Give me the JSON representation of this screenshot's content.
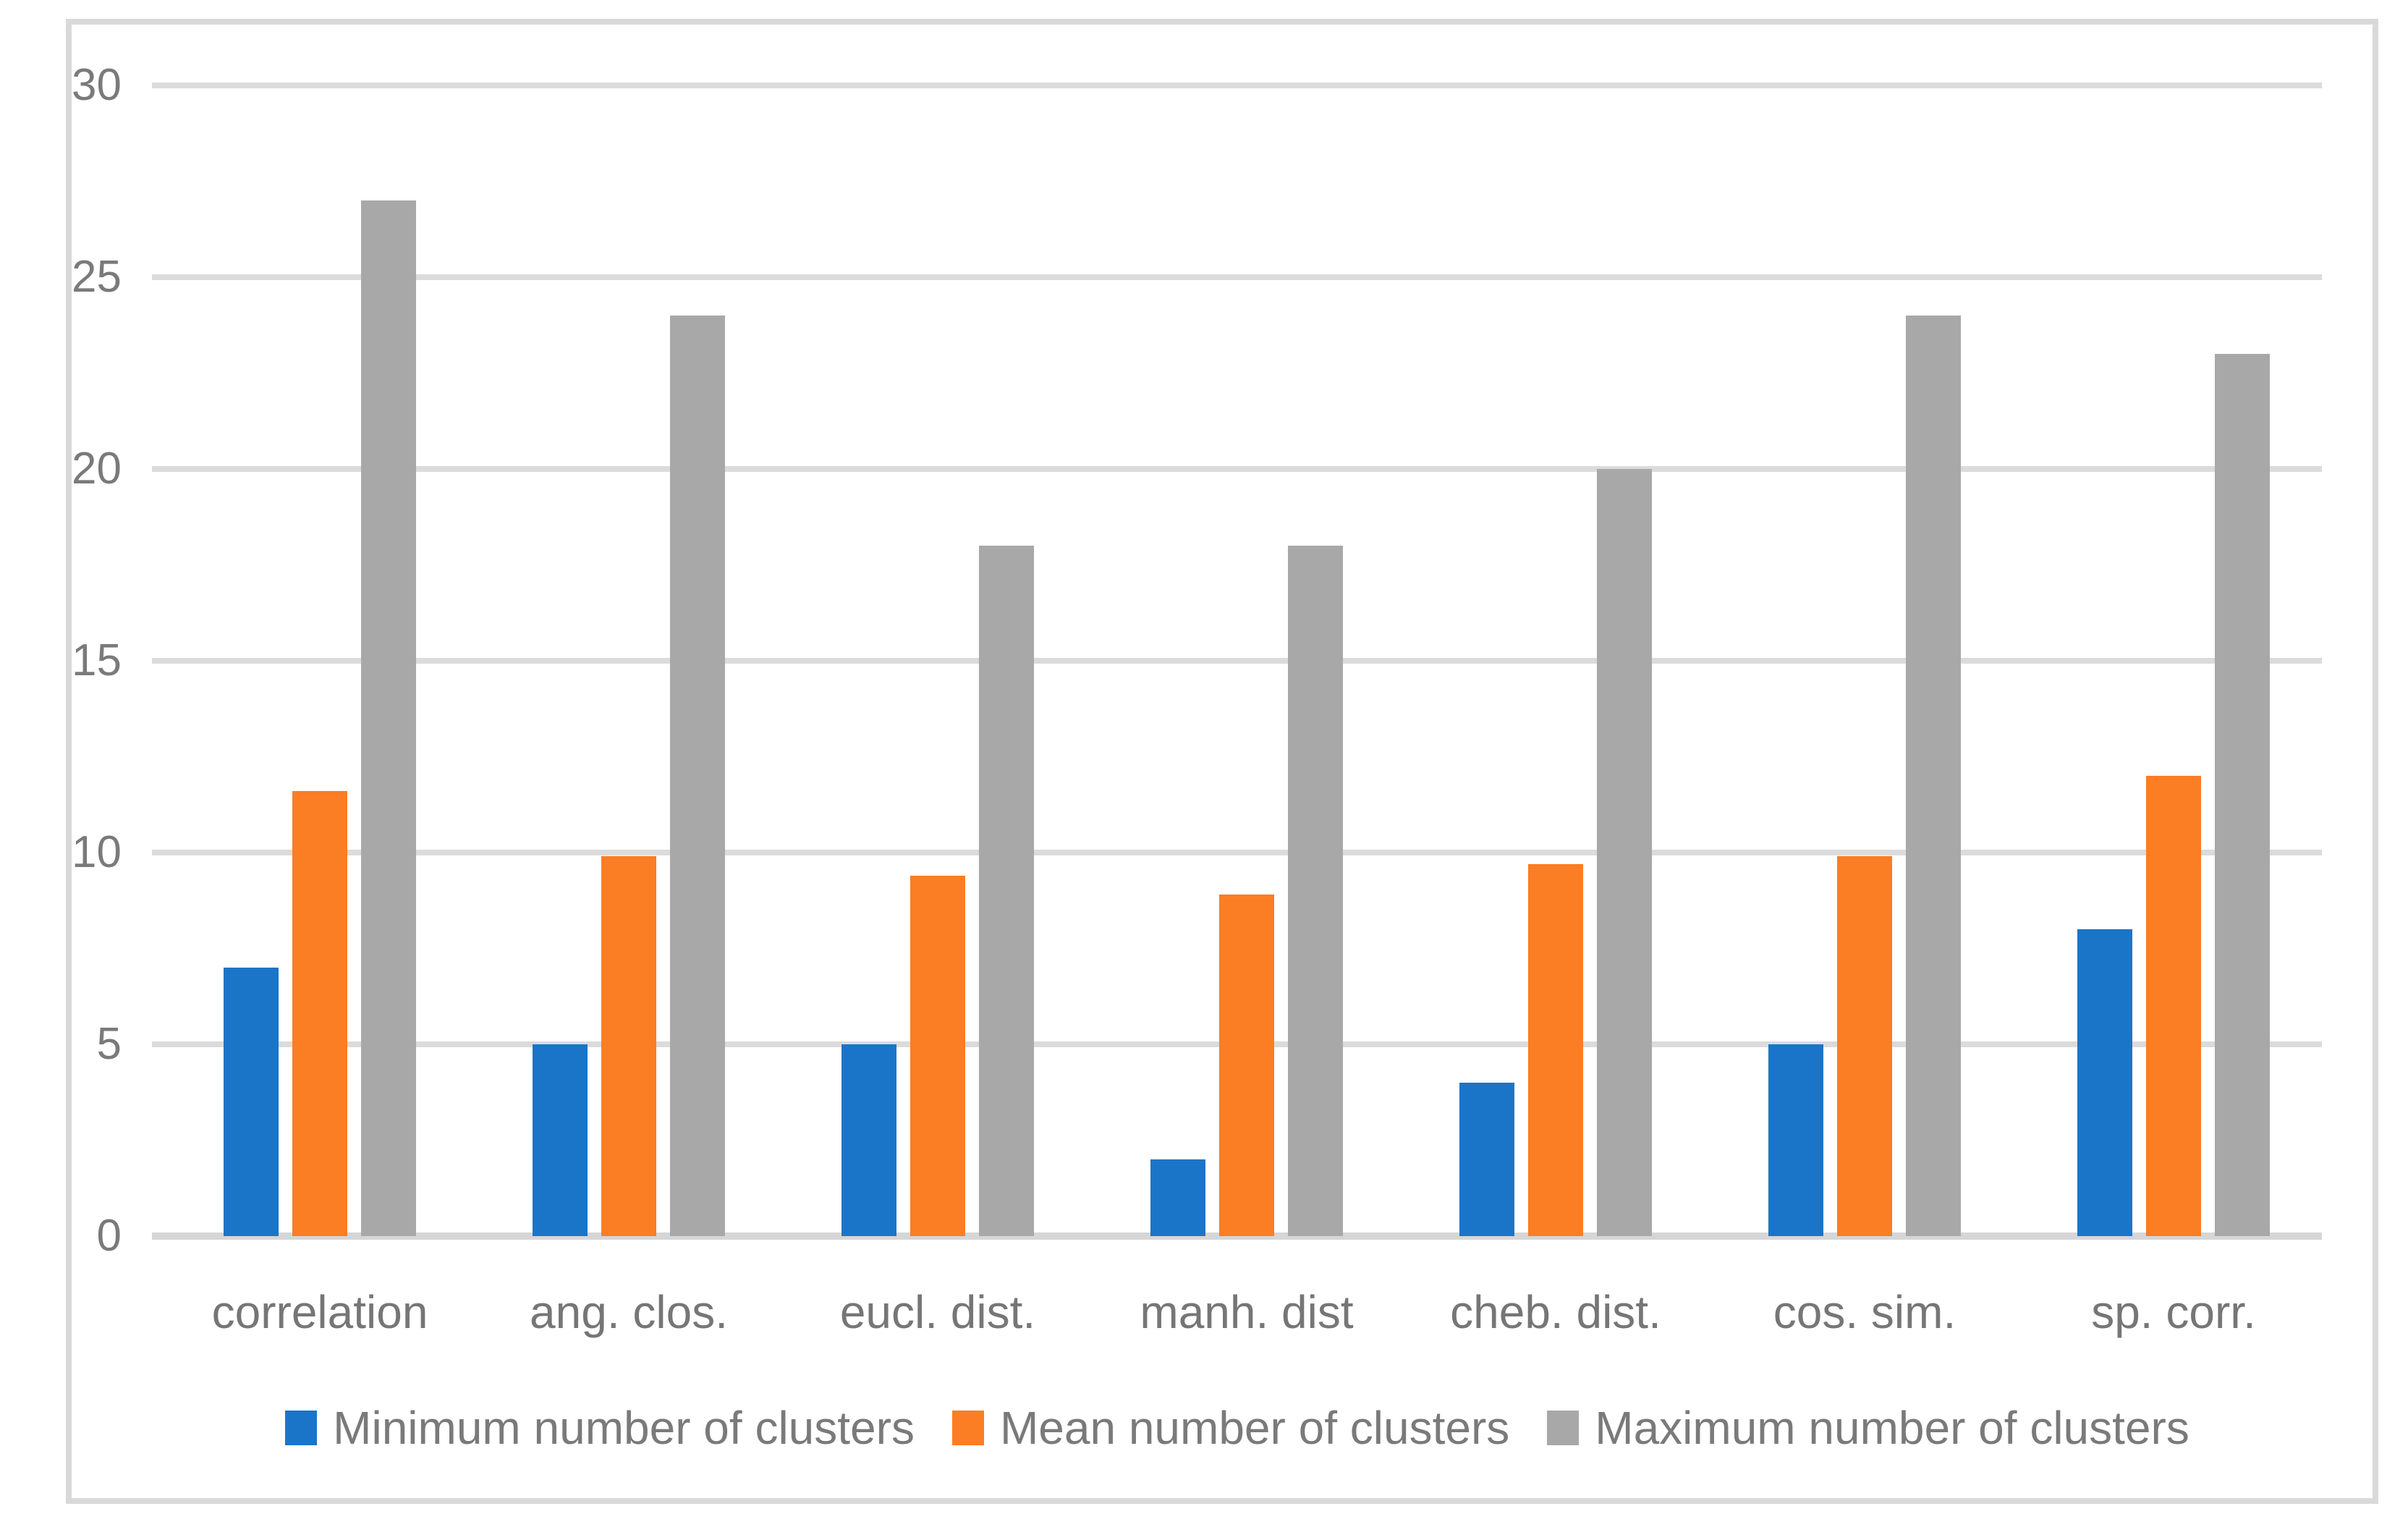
{
  "figure": {
    "background": "#FFFFFF",
    "border_color": "#D9D9D9"
  },
  "chart_data": {
    "type": "bar",
    "title": "",
    "xlabel": "",
    "ylabel": "",
    "categories": [
      "correlation",
      "ang. clos.",
      "eucl. dist.",
      "manh. dist",
      "cheb. dist.",
      "cos. sim.",
      "sp. corr."
    ],
    "series": [
      {
        "name": "Minimum number of clusters",
        "color": "#1A75C9",
        "values": [
          7,
          5,
          5,
          2,
          4,
          5,
          8
        ]
      },
      {
        "name": "Mean number of clusters",
        "color": "#FB7D24",
        "values": [
          11.6,
          9.9,
          9.4,
          8.9,
          9.7,
          9.9,
          12
        ]
      },
      {
        "name": "Maximum number of clusters",
        "color": "#A8A8A8",
        "values": [
          27,
          24,
          18,
          18,
          20,
          24,
          23
        ]
      }
    ],
    "ylim": [
      0,
      30
    ],
    "yticks": [
      0,
      5,
      10,
      15,
      20,
      25,
      30
    ],
    "grid": "horizontal",
    "legend_position": "bottom",
    "colors": {
      "gridline": "#DBDBDB",
      "axis_text": "#7A7A7A"
    }
  }
}
